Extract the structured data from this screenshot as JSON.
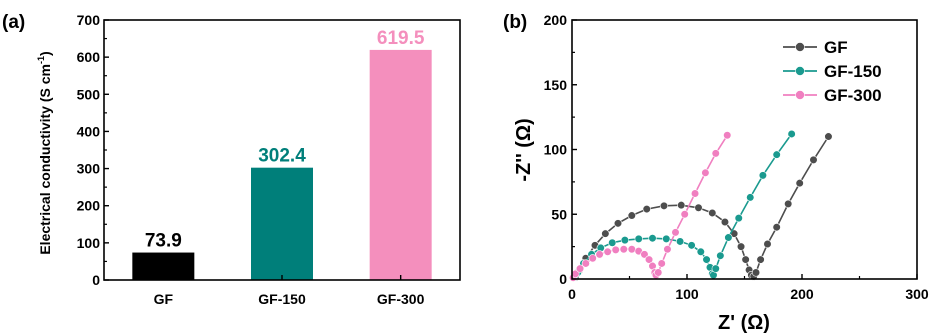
{
  "chart_data": [
    {
      "panel_label": "(a)",
      "type": "bar",
      "categories": [
        "GF",
        "GF-150",
        "GF-300"
      ],
      "values": [
        73.9,
        302.4,
        619.5
      ],
      "value_labels": [
        "73.9",
        "302.4",
        "619.5"
      ],
      "bar_colors": [
        "#000000",
        "#007f7a",
        "#f48fbd"
      ],
      "label_colors": [
        "#000000",
        "#007f7a",
        "#f48fbd"
      ],
      "ylabel_main": "Electrical conductivity (S cm",
      "ylabel_sup": "-1",
      "ylabel_end": ")",
      "ylim": [
        0,
        700
      ],
      "yticks": [
        "0",
        "100",
        "200",
        "300",
        "400",
        "500",
        "600",
        "700"
      ]
    },
    {
      "panel_label": "(b)",
      "type": "scatter",
      "xlabel": "Z' (Ω)",
      "ylabel": "-Z'' (Ω)",
      "xlim": [
        0,
        300
      ],
      "ylim": [
        0,
        200
      ],
      "xticks": [
        "0",
        "100",
        "200",
        "300"
      ],
      "yticks": [
        "0",
        "50",
        "100",
        "150",
        "200"
      ],
      "legend_position": "top-right",
      "series": [
        {
          "name": "GF",
          "color": "#4d4d4d",
          "points": [
            [
              3,
              1
            ],
            [
              6,
              6
            ],
            [
              12,
              16
            ],
            [
              20,
              26
            ],
            [
              29,
              35
            ],
            [
              40,
              43
            ],
            [
              52,
              49
            ],
            [
              65,
              54
            ],
            [
              80,
              56.5
            ],
            [
              95,
              57
            ],
            [
              110,
              55
            ],
            [
              122,
              51
            ],
            [
              133,
              44
            ],
            [
              141,
              35
            ],
            [
              147,
              25
            ],
            [
              151,
              15
            ],
            [
              154,
              7
            ],
            [
              156,
              3
            ],
            [
              158,
              2
            ],
            [
              160,
              5
            ],
            [
              164,
              15
            ],
            [
              170,
              27
            ],
            [
              178,
              40
            ],
            [
              188,
              58
            ],
            [
              198,
              74
            ],
            [
              210,
              92
            ],
            [
              223,
              110
            ]
          ]
        },
        {
          "name": "GF-150",
          "color": "#1a9a8f",
          "points": [
            [
              2,
              1
            ],
            [
              5,
              5
            ],
            [
              10,
              12
            ],
            [
              17,
              19
            ],
            [
              25,
              24
            ],
            [
              35,
              28
            ],
            [
              46,
              30
            ],
            [
              58,
              31
            ],
            [
              70,
              31.5
            ],
            [
              82,
              31
            ],
            [
              94,
              29
            ],
            [
              104,
              26
            ],
            [
              112,
              21
            ],
            [
              117,
              15
            ],
            [
              120,
              9
            ],
            [
              122,
              4
            ],
            [
              123,
              3
            ],
            [
              125,
              8
            ],
            [
              129,
              18
            ],
            [
              136,
              32
            ],
            [
              145,
              47
            ],
            [
              155,
              63
            ],
            [
              166,
              80
            ],
            [
              178,
              96
            ],
            [
              191,
              112
            ]
          ]
        },
        {
          "name": "GF-300",
          "color": "#f07fc0",
          "points": [
            [
              1,
              1
            ],
            [
              3,
              4
            ],
            [
              7,
              8
            ],
            [
              12,
              12
            ],
            [
              18,
              16
            ],
            [
              24,
              19
            ],
            [
              31,
              21
            ],
            [
              38,
              22.5
            ],
            [
              45,
              23
            ],
            [
              52,
              23
            ],
            [
              58,
              21.5
            ],
            [
              63,
              19
            ],
            [
              67,
              15
            ],
            [
              70,
              10
            ],
            [
              72,
              5
            ],
            [
              73,
              3
            ],
            [
              75,
              5
            ],
            [
              78,
              12
            ],
            [
              83,
              23
            ],
            [
              90,
              36
            ],
            [
              98,
              50
            ],
            [
              107,
              66
            ],
            [
              116,
              82
            ],
            [
              125,
              97
            ],
            [
              135,
              111
            ]
          ]
        }
      ]
    }
  ]
}
